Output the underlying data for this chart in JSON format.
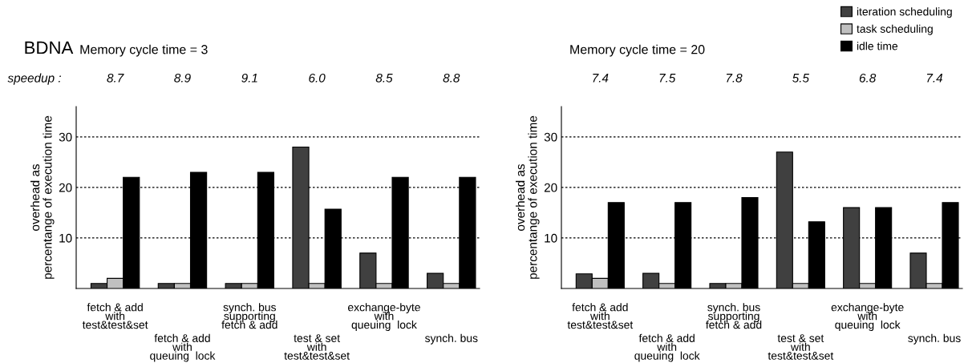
{
  "chart_data": [
    {
      "type": "bar",
      "title": "BDNA",
      "subtitle": "Memory cycle time = 3",
      "ylabel": "overhead as\npercentange of execution time",
      "categories": [
        "fetch & add\nwith\ntest&test&set",
        "fetch & add\nwith\nqueuing  lock",
        "synch. bus\nsupporting\nfetch & add",
        "test & set\nwith\ntest&test&set",
        "exchange-byte\nwith\nqueuing  lock",
        "synch. bus"
      ],
      "series": [
        {
          "color": "#404040",
          "values": [
            1,
            1,
            1,
            28,
            7,
            3
          ]
        },
        {
          "color": "#c0c0c0",
          "values": [
            2,
            1,
            1,
            1,
            1,
            1
          ]
        },
        {
          "color": "#000000",
          "values": [
            22,
            23,
            23,
            15.7,
            22,
            22
          ]
        }
      ],
      "ylim": [
        0,
        36
      ],
      "yticks": [
        10,
        20,
        30
      ],
      "grid": "y",
      "annotations": [
        "speedup :",
        "8.7",
        "8.9",
        "9.1",
        "6.0",
        "8.5",
        "8.8"
      ]
    },
    {
      "type": "bar",
      "subtitle": "Memory cycle time = 20",
      "ylabel": "overhead as\npercentange of execution time",
      "categories": [
        "fetch & add\nwith\ntest&test&set",
        "fetch & add\nwith\nqueuing  lock",
        "synch. bus\nsupporting\nfetch & add",
        "test & set\nwith\ntest&test&set",
        "exchange-byte\nwith\nqueuing  lock",
        "synch. bus"
      ],
      "series": [
        {
          "name": "iteration scheduling",
          "color": "#404040",
          "values": [
            2.9,
            3,
            1,
            27,
            16,
            7
          ]
        },
        {
          "name": "task scheduling",
          "color": "#c0c0c0",
          "values": [
            2,
            1,
            1,
            1,
            1,
            1
          ]
        },
        {
          "name": "idle time",
          "color": "#000000",
          "values": [
            17,
            17,
            18,
            13.2,
            16,
            17
          ]
        }
      ],
      "ylim": [
        0,
        36
      ],
      "yticks": [
        10,
        20,
        30
      ],
      "grid": "y",
      "legend": "top right",
      "annotations": [
        "7.4",
        "7.5",
        "7.8",
        "5.5",
        "6.8",
        "7.4"
      ]
    }
  ]
}
